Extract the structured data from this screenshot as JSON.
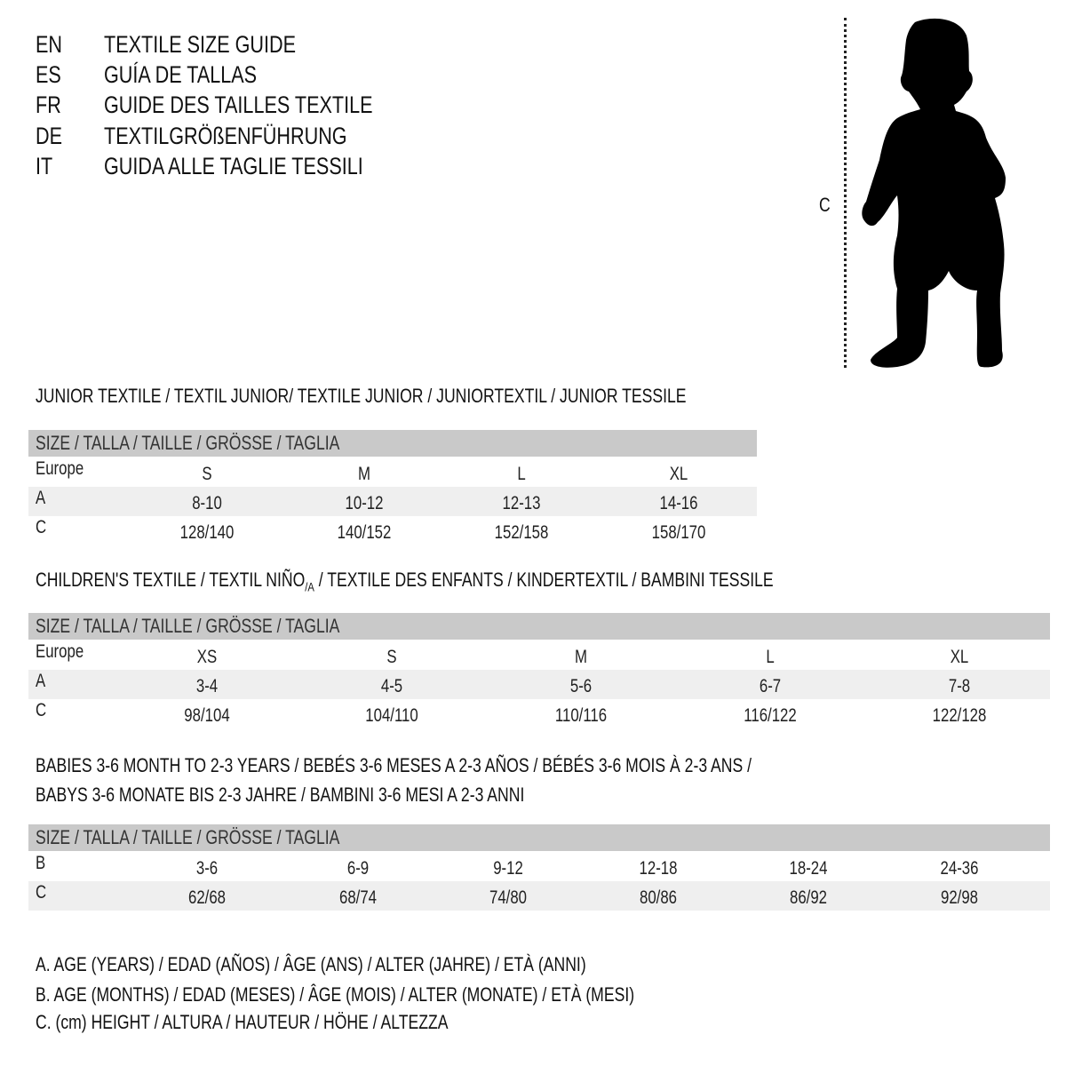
{
  "titles": [
    {
      "code": "EN",
      "text": "TEXTILE SIZE GUIDE"
    },
    {
      "code": "ES",
      "text": "GUÍA DE TALLAS"
    },
    {
      "code": "FR",
      "text": "GUIDE DES TAILLES TEXTILE"
    },
    {
      "code": "DE",
      "text": "TEXTILGRÖßENFÜHRUNG"
    },
    {
      "code": "IT",
      "text": "GUIDA ALLE TAGLIE TESSILI"
    }
  ],
  "figure": {
    "measure_label": "C",
    "icon": "child-silhouette-icon"
  },
  "size_header": "SIZE / TALLA / TAILLE / GRÖSSE / TAGLIA",
  "junior": {
    "title": "JUNIOR TEXTILE / TEXTIL JUNIOR/ TEXTILE JUNIOR / JUNIORTEXTIL / JUNIOR TESSILE",
    "rows": [
      {
        "label": "Europe",
        "values": [
          "S",
          "M",
          "L",
          "XL"
        ]
      },
      {
        "label": "A",
        "values": [
          "8-10",
          "10-12",
          "12-13",
          "14-16"
        ]
      },
      {
        "label": "C",
        "values": [
          "128/140",
          "140/152",
          "152/158",
          "158/170"
        ]
      }
    ]
  },
  "children": {
    "title_pre": "CHILDREN'S TEXTILE / TEXTIL NIÑO",
    "title_sub": "/A",
    "title_post": " / TEXTILE DES ENFANTS / KINDERTEXTIL / BAMBINI TESSILE",
    "rows": [
      {
        "label": "Europe",
        "values": [
          "XS",
          "S",
          "M",
          "L",
          "XL"
        ]
      },
      {
        "label": "A",
        "values": [
          "3-4",
          "4-5",
          "5-6",
          "6-7",
          "7-8"
        ]
      },
      {
        "label": "C",
        "values": [
          "98/104",
          "104/110",
          "110/116",
          "116/122",
          "122/128"
        ]
      }
    ]
  },
  "babies": {
    "title_line1": "BABIES 3-6 MONTH TO 2-3 YEARS / BEBÉS 3-6 MESES A 2-3 AÑOS / BÉBÉS 3-6 MOIS À 2-3 ANS /",
    "title_line2": "BABYS 3-6 MONATE BIS 2-3 JAHRE / BAMBINI 3-6 MESI A 2-3 ANNI",
    "rows": [
      {
        "label": "B",
        "values": [
          "3-6",
          "6-9",
          "9-12",
          "12-18",
          "18-24",
          "24-36"
        ]
      },
      {
        "label": "C",
        "values": [
          "62/68",
          "68/74",
          "74/80",
          "80/86",
          "86/92",
          "92/98"
        ]
      }
    ]
  },
  "legend": [
    "A. AGE (YEARS) / EDAD (AÑOS) / ÂGE (ANS) / ALTER (JAHRE) / ETÀ (ANNI)",
    "B. AGE (MONTHS) / EDAD (MESES) / ÂGE (MOIS) / ALTER (MONATE) / ETÀ (MESI)",
    "C. (cm) HEIGHT / ALTURA / HAUTEUR / HÖHE / ALTEZZA"
  ],
  "colors": {
    "header_bg": "#c9c9c9",
    "alt_row_bg": "#efefef"
  }
}
